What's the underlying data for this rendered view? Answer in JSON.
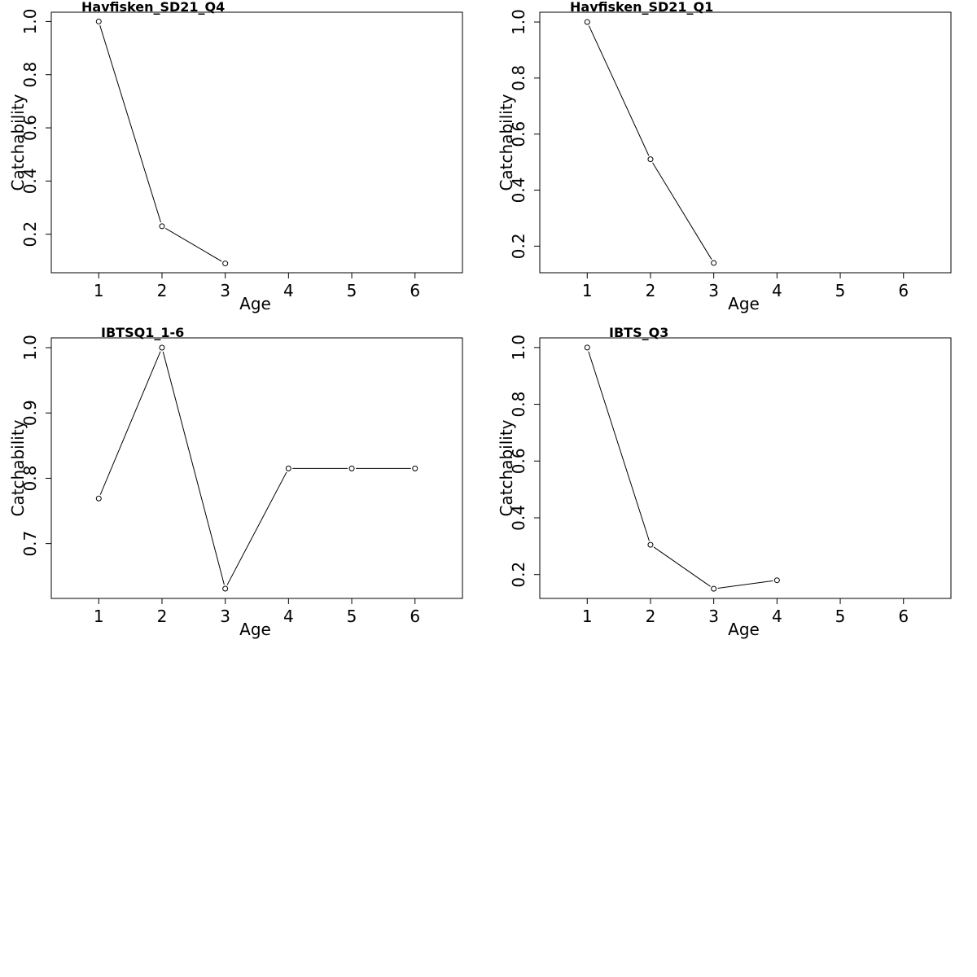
{
  "chart_data": [
    {
      "type": "line",
      "title": "Havfisken_SD21_Q4",
      "xlabel": "Age",
      "ylabel": "Catchability",
      "x": [
        1,
        2,
        3
      ],
      "values": [
        1.0,
        0.23,
        0.09
      ],
      "xlim": [
        0.25,
        6.75
      ],
      "ylim": [
        0.055,
        1.035
      ],
      "xticks": [
        "1",
        "2",
        "3",
        "4",
        "5",
        "6"
      ],
      "yticks": [
        "0.2",
        "0.4",
        "0.6",
        "0.8",
        "1.0"
      ],
      "grid": false
    },
    {
      "type": "line",
      "title": "Havfisken_SD21_Q1",
      "xlabel": "Age",
      "ylabel": "Catchability",
      "x": [
        1,
        2,
        3
      ],
      "values": [
        1.0,
        0.51,
        0.14
      ],
      "xlim": [
        0.25,
        6.75
      ],
      "ylim": [
        0.105,
        1.035
      ],
      "xticks": [
        "1",
        "2",
        "3",
        "4",
        "5",
        "6"
      ],
      "yticks": [
        "0.2",
        "0.4",
        "0.6",
        "0.8",
        "1.0"
      ],
      "grid": false
    },
    {
      "type": "line",
      "title": "IBTSQ1_1-6",
      "xlabel": "Age",
      "ylabel": "Catchability",
      "x": [
        1,
        2,
        3,
        4,
        5,
        6
      ],
      "values": [
        0.769,
        1.0,
        0.631,
        0.815,
        0.815,
        0.815
      ],
      "xlim": [
        0.25,
        6.75
      ],
      "ylim": [
        0.616,
        1.015
      ],
      "xticks": [
        "1",
        "2",
        "3",
        "4",
        "5",
        "6"
      ],
      "yticks": [
        "0.7",
        "0.8",
        "0.9",
        "1.0"
      ],
      "grid": false
    },
    {
      "type": "line",
      "title": "IBTS_Q3",
      "xlabel": "Age",
      "ylabel": "Catchability",
      "x": [
        1,
        2,
        3,
        4
      ],
      "values": [
        1.0,
        0.305,
        0.15,
        0.18
      ],
      "xlim": [
        0.25,
        6.75
      ],
      "ylim": [
        0.116,
        1.034
      ],
      "xticks": [
        "1",
        "2",
        "3",
        "4",
        "5",
        "6"
      ],
      "yticks": [
        "0.2",
        "0.4",
        "0.6",
        "0.8",
        "1.0"
      ],
      "grid": false
    }
  ]
}
